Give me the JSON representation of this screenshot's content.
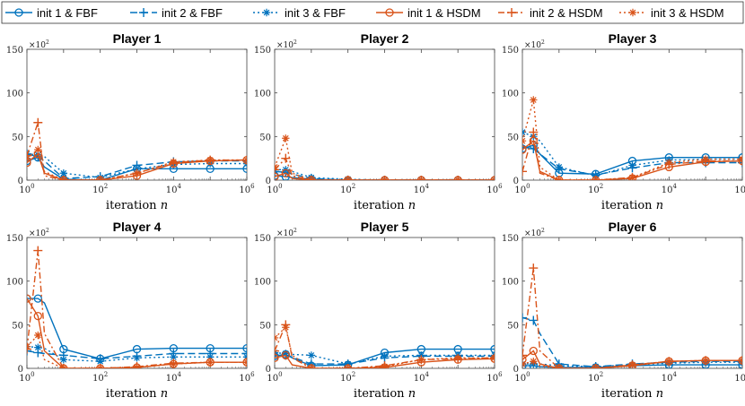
{
  "chart_data": {
    "type": "line",
    "legend": {
      "placement": "top",
      "entries": [
        {
          "label": "init 1 & FBF",
          "color": "#0072BD",
          "dash": "solid",
          "marker": "o"
        },
        {
          "label": "init 2 & FBF",
          "color": "#0072BD",
          "dash": "dashed",
          "marker": "+"
        },
        {
          "label": "init 3 & FBF",
          "color": "#0072BD",
          "dash": "dotted",
          "marker": "*"
        },
        {
          "label": "init 1 & HSDM",
          "color": "#D95319",
          "dash": "solid",
          "marker": "o"
        },
        {
          "label": "init 2 & HSDM",
          "color": "#D95319",
          "dash": "dashdot",
          "marker": "+"
        },
        {
          "label": "init 3 & HSDM",
          "color": "#D95319",
          "dash": "dotted",
          "marker": "*"
        }
      ]
    },
    "x": [
      1,
      2,
      3,
      10,
      100,
      1000,
      10000,
      100000,
      1000000
    ],
    "xscale": "log",
    "xlim": [
      1,
      1000000
    ],
    "xticks": [
      "10^0",
      "10^2",
      "10^4",
      "10^6"
    ],
    "xlabel": "iteration n",
    "ylim": [
      0,
      150
    ],
    "yticks": [
      "0",
      "50",
      "100",
      "150"
    ],
    "y_multiplier": "×10^2",
    "grid": false,
    "subplots": [
      {
        "title": "Player 1",
        "series": [
          {
            "name": "init 1 & FBF",
            "values": [
              22,
              26,
              15,
              1,
              0,
              13,
              13,
              13,
              13
            ]
          },
          {
            "name": "init 2 & FBF",
            "values": [
              30,
              27,
              22,
              2,
              4,
              17,
              21,
              22,
              22
            ]
          },
          {
            "name": "init 3 & FBF",
            "values": [
              30,
              29,
              27,
              8,
              3,
              13,
              18,
              19,
              19
            ]
          },
          {
            "name": "init 1 & HSDM",
            "values": [
              20,
              30,
              8,
              0,
              0,
              5,
              19,
              22,
              23
            ]
          },
          {
            "name": "init 2 & HSDM",
            "values": [
              28,
              66,
              5,
              0,
              0,
              8,
              20,
              23,
              23
            ]
          },
          {
            "name": "init 3 & HSDM",
            "values": [
              25,
              35,
              10,
              0,
              0,
              8,
              21,
              23,
              23
            ]
          }
        ]
      },
      {
        "title": "Player 2",
        "series": [
          {
            "name": "init 1 & FBF",
            "values": [
              5,
              4,
              3,
              1,
              0,
              0,
              0,
              0,
              0
            ]
          },
          {
            "name": "init 2 & FBF",
            "values": [
              10,
              9,
              7,
              2,
              0,
              0,
              0,
              0,
              0
            ]
          },
          {
            "name": "init 3 & FBF",
            "values": [
              12,
              12,
              10,
              3,
              1,
              0,
              0,
              0,
              0
            ]
          },
          {
            "name": "init 1 & HSDM",
            "values": [
              4,
              8,
              2,
              0,
              0,
              0,
              0,
              0,
              0
            ]
          },
          {
            "name": "init 2 & HSDM",
            "values": [
              12,
              25,
              5,
              0,
              0,
              0,
              0,
              0,
              0
            ]
          },
          {
            "name": "init 3 & HSDM",
            "values": [
              15,
              48,
              8,
              0,
              0,
              0,
              0,
              0,
              0
            ]
          }
        ]
      },
      {
        "title": "Player 3",
        "series": [
          {
            "name": "init 1 & FBF",
            "values": [
              36,
              40,
              30,
              8,
              7,
              22,
              26,
              26,
              26
            ]
          },
          {
            "name": "init 2 & FBF",
            "values": [
              38,
              36,
              30,
              13,
              6,
              14,
              20,
              20,
              20
            ]
          },
          {
            "name": "init 3 & FBF",
            "values": [
              55,
              50,
              45,
              15,
              5,
              17,
              23,
              24,
              24
            ]
          },
          {
            "name": "init 1 & HSDM",
            "values": [
              35,
              45,
              10,
              0,
              0,
              2,
              15,
              21,
              22
            ]
          },
          {
            "name": "init 2 & HSDM",
            "values": [
              10,
              55,
              8,
              0,
              0,
              3,
              18,
              22,
              22
            ]
          },
          {
            "name": "init 3 & HSDM",
            "values": [
              45,
              92,
              15,
              0,
              0,
              3,
              20,
              24,
              24
            ]
          }
        ]
      },
      {
        "title": "Player 4",
        "series": [
          {
            "name": "init 1 & FBF",
            "values": [
              80,
              80,
              75,
              22,
              11,
              22,
              23,
              23,
              23
            ]
          },
          {
            "name": "init 2 & FBF",
            "values": [
              20,
              18,
              17,
              15,
              11,
              14,
              17,
              17,
              17
            ]
          },
          {
            "name": "init 3 & FBF",
            "values": [
              25,
              24,
              23,
              10,
              8,
              12,
              13,
              13,
              13
            ]
          },
          {
            "name": "init 1 & HSDM",
            "values": [
              80,
              60,
              20,
              0,
              0,
              1,
              5,
              7,
              7
            ]
          },
          {
            "name": "init 2 & HSDM",
            "values": [
              22,
              135,
              40,
              0,
              0,
              2,
              6,
              7,
              7
            ]
          },
          {
            "name": "init 3 & HSDM",
            "values": [
              25,
              38,
              10,
              0,
              0,
              1,
              5,
              7,
              7
            ]
          }
        ]
      },
      {
        "title": "Player 5",
        "series": [
          {
            "name": "init 1 & FBF",
            "values": [
              14,
              16,
              12,
              3,
              4,
              18,
              22,
              22,
              22
            ]
          },
          {
            "name": "init 2 & FBF",
            "values": [
              15,
              15,
              13,
              5,
              5,
              12,
              14,
              14,
              14
            ]
          },
          {
            "name": "init 3 & FBF",
            "values": [
              18,
              17,
              16,
              15,
              5,
              14,
              15,
              15,
              15
            ]
          },
          {
            "name": "init 1 & HSDM",
            "values": [
              12,
              15,
              4,
              0,
              0,
              1,
              7,
              10,
              11
            ]
          },
          {
            "name": "init 2 & HSDM",
            "values": [
              20,
              50,
              12,
              0,
              0,
              3,
              10,
              11,
              12
            ]
          },
          {
            "name": "init 3 & HSDM",
            "values": [
              35,
              47,
              15,
              0,
              0,
              2,
              10,
              12,
              12
            ]
          }
        ]
      },
      {
        "title": "Player 6",
        "series": [
          {
            "name": "init 1 & FBF",
            "values": [
              3,
              3,
              2,
              1,
              1,
              3,
              4,
              4,
              4
            ]
          },
          {
            "name": "init 2 & FBF",
            "values": [
              58,
              55,
              40,
              5,
              2,
              5,
              7,
              8,
              8
            ]
          },
          {
            "name": "init 3 & FBF",
            "values": [
              5,
              5,
              5,
              3,
              2,
              4,
              6,
              7,
              7
            ]
          },
          {
            "name": "init 1 & HSDM",
            "values": [
              10,
              20,
              5,
              0,
              0,
              3,
              8,
              9,
              9
            ]
          },
          {
            "name": "init 2 & HSDM",
            "values": [
              15,
              115,
              20,
              0,
              0,
              4,
              8,
              9,
              9
            ]
          },
          {
            "name": "init 3 & HSDM",
            "values": [
              5,
              8,
              3,
              0,
              0,
              4,
              8,
              9,
              9
            ]
          }
        ]
      }
    ]
  }
}
